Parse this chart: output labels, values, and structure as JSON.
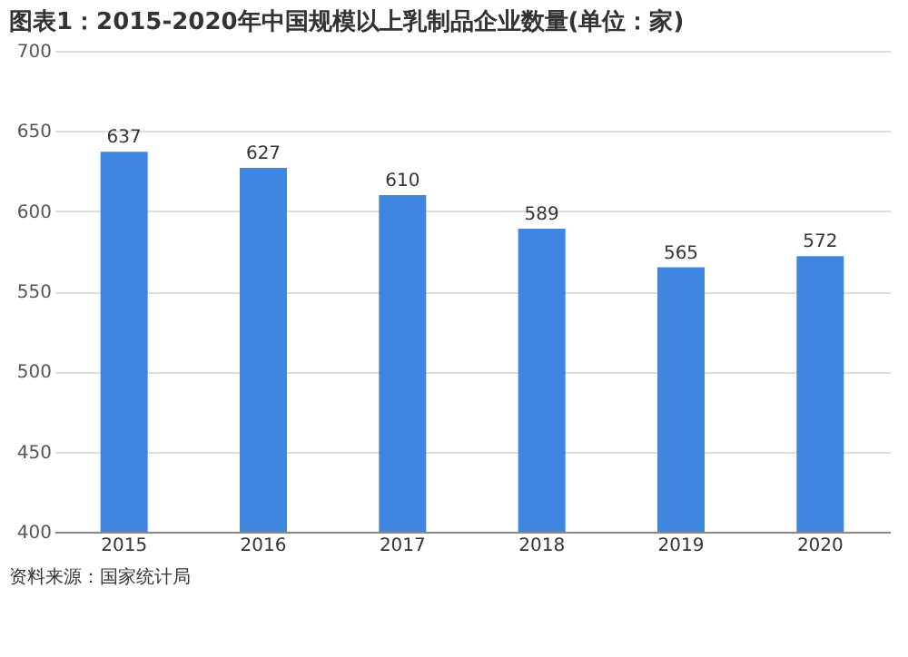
{
  "chart_data": {
    "type": "bar",
    "title": "图表1：2015-2020年中国规模以上乳制品企业数量(单位：家)",
    "categories": [
      "2015",
      "2016",
      "2017",
      "2018",
      "2019",
      "2020"
    ],
    "values": [
      637,
      627,
      610,
      589,
      565,
      572
    ],
    "color": "#3f86e0",
    "ylim": [
      400,
      700
    ],
    "yticks": [
      400,
      450,
      500,
      550,
      600,
      650,
      700
    ],
    "grid": "y",
    "data_labels": true,
    "annotations": [
      "资料来源：国家统计局"
    ]
  }
}
